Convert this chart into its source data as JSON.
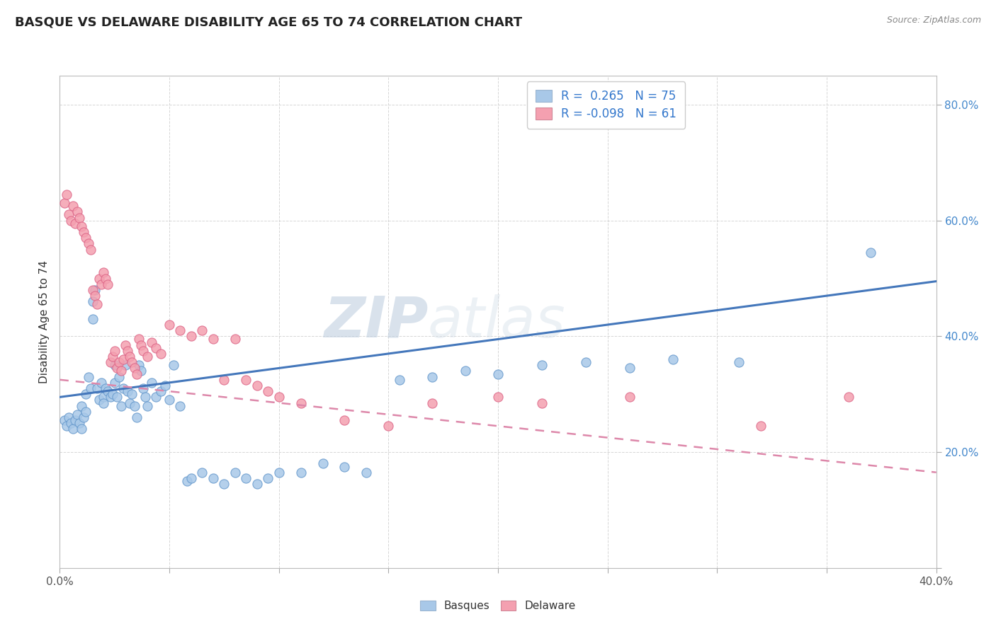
{
  "title": "BASQUE VS DELAWARE DISABILITY AGE 65 TO 74 CORRELATION CHART",
  "source_text": "Source: ZipAtlas.com",
  "ylabel": "Disability Age 65 to 74",
  "xlim": [
    0.0,
    0.4
  ],
  "ylim": [
    0.0,
    0.85
  ],
  "blue_color": "#a8c8e8",
  "blue_edge_color": "#6699cc",
  "pink_color": "#f4a0b0",
  "pink_edge_color": "#dd6688",
  "blue_line_color": "#4477bb",
  "pink_line_color": "#dd88aa",
  "watermark_zip": "ZIP",
  "watermark_atlas": "atlas",
  "watermark_color": "#c8d8ea",
  "background_color": "#ffffff",
  "grid_color": "#cccccc",
  "title_fontsize": 13,
  "legend_text1": "R =  0.265   N = 75",
  "legend_text2": "R = -0.098   N = 61",
  "blue_line_x0": 0.0,
  "blue_line_y0": 0.295,
  "blue_line_x1": 0.4,
  "blue_line_y1": 0.495,
  "pink_line_x0": 0.0,
  "pink_line_y0": 0.325,
  "pink_line_x1": 0.4,
  "pink_line_y1": 0.165,
  "basques_x": [
    0.002,
    0.003,
    0.004,
    0.005,
    0.006,
    0.007,
    0.008,
    0.009,
    0.01,
    0.01,
    0.011,
    0.012,
    0.012,
    0.013,
    0.014,
    0.015,
    0.015,
    0.016,
    0.017,
    0.018,
    0.019,
    0.02,
    0.02,
    0.021,
    0.022,
    0.023,
    0.024,
    0.025,
    0.025,
    0.026,
    0.027,
    0.028,
    0.029,
    0.03,
    0.031,
    0.032,
    0.033,
    0.034,
    0.035,
    0.036,
    0.037,
    0.038,
    0.039,
    0.04,
    0.042,
    0.044,
    0.046,
    0.048,
    0.05,
    0.052,
    0.055,
    0.058,
    0.06,
    0.065,
    0.07,
    0.075,
    0.08,
    0.085,
    0.09,
    0.095,
    0.1,
    0.11,
    0.12,
    0.13,
    0.14,
    0.155,
    0.17,
    0.185,
    0.2,
    0.22,
    0.24,
    0.26,
    0.28,
    0.31,
    0.37
  ],
  "basques_y": [
    0.255,
    0.245,
    0.26,
    0.25,
    0.24,
    0.255,
    0.265,
    0.25,
    0.24,
    0.28,
    0.26,
    0.3,
    0.27,
    0.33,
    0.31,
    0.46,
    0.43,
    0.48,
    0.31,
    0.29,
    0.32,
    0.295,
    0.285,
    0.31,
    0.305,
    0.295,
    0.3,
    0.35,
    0.32,
    0.295,
    0.33,
    0.28,
    0.31,
    0.35,
    0.305,
    0.285,
    0.3,
    0.28,
    0.26,
    0.35,
    0.34,
    0.31,
    0.295,
    0.28,
    0.32,
    0.295,
    0.305,
    0.315,
    0.29,
    0.35,
    0.28,
    0.15,
    0.155,
    0.165,
    0.155,
    0.145,
    0.165,
    0.155,
    0.145,
    0.155,
    0.165,
    0.165,
    0.18,
    0.175,
    0.165,
    0.325,
    0.33,
    0.34,
    0.335,
    0.35,
    0.355,
    0.345,
    0.36,
    0.355,
    0.545
  ],
  "delaware_x": [
    0.002,
    0.003,
    0.004,
    0.005,
    0.006,
    0.007,
    0.008,
    0.009,
    0.01,
    0.011,
    0.012,
    0.013,
    0.014,
    0.015,
    0.016,
    0.017,
    0.018,
    0.019,
    0.02,
    0.021,
    0.022,
    0.023,
    0.024,
    0.025,
    0.026,
    0.027,
    0.028,
    0.029,
    0.03,
    0.031,
    0.032,
    0.033,
    0.034,
    0.035,
    0.036,
    0.037,
    0.038,
    0.04,
    0.042,
    0.044,
    0.046,
    0.05,
    0.055,
    0.06,
    0.065,
    0.07,
    0.075,
    0.08,
    0.085,
    0.09,
    0.095,
    0.1,
    0.11,
    0.13,
    0.15,
    0.17,
    0.2,
    0.22,
    0.26,
    0.32,
    0.36
  ],
  "delaware_y": [
    0.63,
    0.645,
    0.61,
    0.6,
    0.625,
    0.595,
    0.615,
    0.605,
    0.59,
    0.58,
    0.57,
    0.56,
    0.55,
    0.48,
    0.47,
    0.455,
    0.5,
    0.49,
    0.51,
    0.5,
    0.49,
    0.355,
    0.365,
    0.375,
    0.345,
    0.355,
    0.34,
    0.36,
    0.385,
    0.375,
    0.365,
    0.355,
    0.345,
    0.335,
    0.395,
    0.385,
    0.375,
    0.365,
    0.39,
    0.38,
    0.37,
    0.42,
    0.41,
    0.4,
    0.41,
    0.395,
    0.325,
    0.395,
    0.325,
    0.315,
    0.305,
    0.295,
    0.285,
    0.255,
    0.245,
    0.285,
    0.295,
    0.285,
    0.295,
    0.245,
    0.295
  ]
}
